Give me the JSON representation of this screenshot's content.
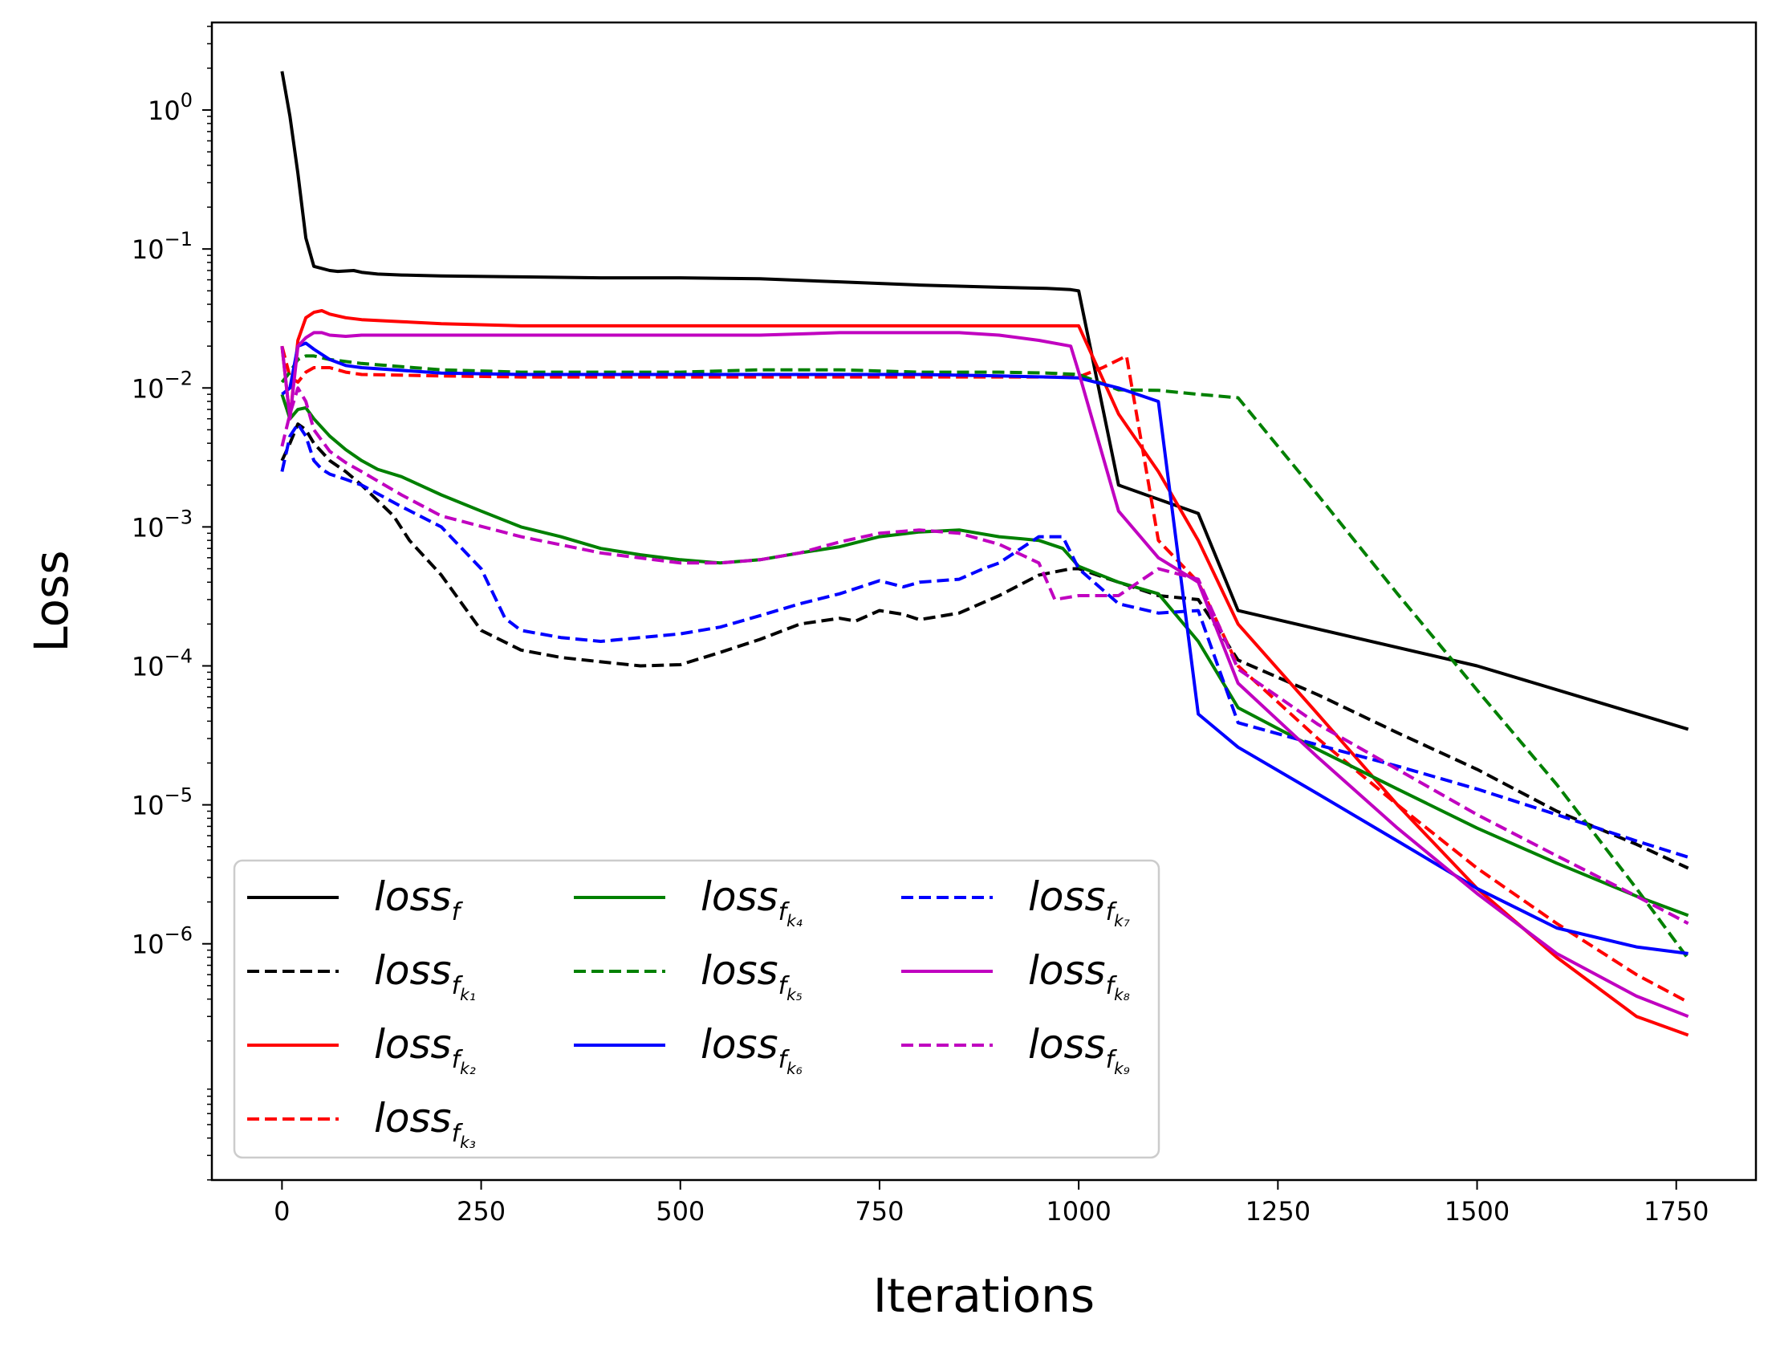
{
  "chart_data": {
    "type": "line",
    "title": "",
    "xlabel": "Iterations",
    "ylabel": "Loss",
    "yscale": "log",
    "xlim": [
      -88,
      1850
    ],
    "ylim_log10": [
      -7.7,
      0.63
    ],
    "xticks": [
      0,
      250,
      500,
      750,
      1000,
      1250,
      1500,
      1750
    ],
    "xtick_labels": [
      "0",
      "250",
      "500",
      "750",
      "1000",
      "1250",
      "1500",
      "1750"
    ],
    "ytick_exponents": [
      0,
      -1,
      -2,
      -3,
      -4,
      -5,
      -6
    ],
    "ytick_labels": [
      {
        "base": "10",
        "exp": "0"
      },
      {
        "base": "10",
        "exp": "−1"
      },
      {
        "base": "10",
        "exp": "−2"
      },
      {
        "base": "10",
        "exp": "−3"
      },
      {
        "base": "10",
        "exp": "−4"
      },
      {
        "base": "10",
        "exp": "−5"
      },
      {
        "base": "10",
        "exp": "−6"
      }
    ],
    "legend_position": "lower-left",
    "legend_columns": 3,
    "series": [
      {
        "name": "loss_f",
        "label_main": "loss",
        "label_sub": "f",
        "label_subsub": "",
        "color": "#000000",
        "dashed": false,
        "x": [
          0,
          10,
          20,
          30,
          40,
          60,
          70,
          90,
          100,
          120,
          150,
          200,
          300,
          400,
          500,
          600,
          700,
          800,
          900,
          960,
          990,
          1000,
          1050,
          1150,
          1200,
          1500,
          1765
        ],
        "y": [
          1.9,
          0.9,
          0.35,
          0.12,
          0.075,
          0.07,
          0.069,
          0.07,
          0.068,
          0.066,
          0.065,
          0.064,
          0.063,
          0.062,
          0.062,
          0.061,
          0.058,
          0.055,
          0.053,
          0.052,
          0.051,
          0.05,
          0.002,
          0.00125,
          0.00025,
          0.0001,
          3.5e-05
        ]
      },
      {
        "name": "loss_fk1",
        "label_main": "loss",
        "label_sub": "f",
        "label_subsub": "k₁",
        "color": "#000000",
        "dashed": true,
        "x": [
          0,
          10,
          20,
          30,
          40,
          60,
          80,
          100,
          140,
          160,
          200,
          250,
          300,
          350,
          400,
          450,
          500,
          550,
          600,
          650,
          700,
          720,
          750,
          780,
          800,
          850,
          900,
          950,
          990,
          1000,
          1050,
          1100,
          1150,
          1200,
          1300,
          1400,
          1500,
          1600,
          1700,
          1765
        ],
        "y": [
          0.003,
          0.004,
          0.0055,
          0.005,
          0.004,
          0.003,
          0.0025,
          0.002,
          0.0012,
          0.0008,
          0.00045,
          0.00018,
          0.00013,
          0.000115,
          0.000107,
          0.0001,
          0.000102,
          0.000125,
          0.000155,
          0.0002,
          0.00022,
          0.00021,
          0.00025,
          0.000235,
          0.000215,
          0.00024,
          0.00032,
          0.00045,
          0.0005,
          0.0005,
          0.0004,
          0.00032,
          0.0003,
          0.00011,
          6.2e-05,
          3.3e-05,
          1.8e-05,
          9e-06,
          5.2e-06,
          3.5e-06
        ]
      },
      {
        "name": "loss_fk2",
        "label_main": "loss",
        "label_sub": "f",
        "label_subsub": "k₂",
        "color": "#ff0000",
        "dashed": false,
        "x": [
          0,
          10,
          20,
          30,
          40,
          50,
          60,
          80,
          100,
          150,
          200,
          300,
          400,
          500,
          600,
          700,
          800,
          900,
          960,
          1000,
          1050,
          1100,
          1150,
          1200,
          1300,
          1400,
          1500,
          1600,
          1700,
          1765
        ],
        "y": [
          0.02,
          0.006,
          0.022,
          0.032,
          0.035,
          0.036,
          0.034,
          0.032,
          0.031,
          0.03,
          0.029,
          0.028,
          0.028,
          0.028,
          0.028,
          0.028,
          0.028,
          0.028,
          0.028,
          0.028,
          0.0065,
          0.0025,
          0.0008,
          0.0002,
          4.5e-05,
          1e-05,
          2.5e-06,
          8e-07,
          3e-07,
          2.2e-07
        ]
      },
      {
        "name": "loss_fk3",
        "label_main": "loss",
        "label_sub": "f",
        "label_subsub": "k₃",
        "color": "#ff0000",
        "dashed": true,
        "x": [
          0,
          10,
          20,
          30,
          40,
          60,
          80,
          100,
          200,
          300,
          400,
          500,
          600,
          700,
          800,
          900,
          960,
          990,
          1000,
          1030,
          1060,
          1100,
          1150,
          1200,
          1300,
          1400,
          1500,
          1600,
          1700,
          1765
        ],
        "y": [
          0.02,
          0.012,
          0.011,
          0.013,
          0.014,
          0.014,
          0.013,
          0.0125,
          0.0122,
          0.012,
          0.012,
          0.012,
          0.012,
          0.012,
          0.012,
          0.012,
          0.012,
          0.012,
          0.012,
          0.014,
          0.017,
          0.0008,
          0.0004,
          0.0001,
          3e-05,
          1e-05,
          3.5e-06,
          1.4e-06,
          6e-07,
          3.8e-07
        ]
      },
      {
        "name": "loss_fk4",
        "label_main": "loss",
        "label_sub": "f",
        "label_subsub": "k₄",
        "color": "#008000",
        "dashed": false,
        "x": [
          0,
          10,
          20,
          30,
          40,
          60,
          80,
          100,
          120,
          150,
          200,
          250,
          300,
          350,
          400,
          450,
          500,
          550,
          600,
          650,
          700,
          750,
          800,
          850,
          900,
          950,
          980,
          1000,
          1050,
          1100,
          1150,
          1200,
          1300,
          1400,
          1500,
          1600,
          1700,
          1765
        ],
        "y": [
          0.009,
          0.006,
          0.007,
          0.0072,
          0.006,
          0.0045,
          0.0036,
          0.003,
          0.0026,
          0.0023,
          0.0017,
          0.0013,
          0.001,
          0.00085,
          0.0007,
          0.00063,
          0.00058,
          0.00055,
          0.00058,
          0.00065,
          0.00072,
          0.00085,
          0.00092,
          0.00095,
          0.00085,
          0.0008,
          0.0007,
          0.00052,
          0.0004,
          0.00033,
          0.00015,
          5e-05,
          2.5e-05,
          1.3e-05,
          6.8e-06,
          3.8e-06,
          2.2e-06,
          1.6e-06
        ]
      },
      {
        "name": "loss_fk5",
        "label_main": "loss",
        "label_sub": "f",
        "label_subsub": "k₅",
        "color": "#008000",
        "dashed": true,
        "x": [
          0,
          10,
          20,
          30,
          40,
          60,
          80,
          100,
          200,
          300,
          400,
          500,
          600,
          700,
          800,
          900,
          960,
          1000,
          1050,
          1100,
          1150,
          1200,
          1300,
          1400,
          1500,
          1600,
          1700,
          1765
        ],
        "y": [
          0.011,
          0.013,
          0.016,
          0.017,
          0.017,
          0.016,
          0.0155,
          0.015,
          0.0135,
          0.013,
          0.013,
          0.013,
          0.0135,
          0.0135,
          0.013,
          0.013,
          0.0128,
          0.0125,
          0.0097,
          0.0096,
          0.009,
          0.0085,
          0.0017,
          0.00033,
          6.7e-05,
          1.4e-05,
          2.5e-06,
          7.8e-07
        ]
      },
      {
        "name": "loss_fk6",
        "label_main": "loss",
        "label_sub": "f",
        "label_subsub": "k₆",
        "color": "#0000ff",
        "dashed": false,
        "x": [
          0,
          10,
          20,
          30,
          40,
          60,
          80,
          100,
          200,
          300,
          400,
          500,
          600,
          700,
          800,
          900,
          960,
          1000,
          1050,
          1100,
          1150,
          1200,
          1300,
          1400,
          1500,
          1600,
          1700,
          1765
        ],
        "y": [
          0.009,
          0.01,
          0.02,
          0.021,
          0.019,
          0.016,
          0.0145,
          0.014,
          0.0128,
          0.0125,
          0.0125,
          0.0125,
          0.0125,
          0.0125,
          0.0125,
          0.0122,
          0.012,
          0.0118,
          0.01,
          0.008,
          4.5e-05,
          2.6e-05,
          1.2e-05,
          5.5e-06,
          2.5e-06,
          1.3e-06,
          9.5e-07,
          8.5e-07
        ]
      },
      {
        "name": "loss_fk7",
        "label_main": "loss",
        "label_sub": "f",
        "label_subsub": "k₇",
        "color": "#0000ff",
        "dashed": true,
        "x": [
          0,
          10,
          20,
          30,
          40,
          50,
          60,
          80,
          100,
          150,
          200,
          250,
          280,
          300,
          350,
          400,
          450,
          500,
          550,
          600,
          650,
          700,
          750,
          780,
          800,
          850,
          880,
          900,
          950,
          980,
          1000,
          1050,
          1100,
          1150,
          1200,
          1300,
          1400,
          1500,
          1600,
          1700,
          1765
        ],
        "y": [
          0.0025,
          0.0045,
          0.0055,
          0.0045,
          0.003,
          0.0026,
          0.0024,
          0.0022,
          0.002,
          0.0014,
          0.001,
          0.0005,
          0.00022,
          0.00018,
          0.00016,
          0.00015,
          0.00016,
          0.00017,
          0.00019,
          0.00023,
          0.00028,
          0.00033,
          0.00041,
          0.00037,
          0.0004,
          0.00042,
          0.0005,
          0.00055,
          0.00085,
          0.00085,
          0.0005,
          0.00028,
          0.00024,
          0.00025,
          3.9e-05,
          2.7e-05,
          1.9e-05,
          1.3e-05,
          8.5e-06,
          5.5e-06,
          4.2e-06
        ]
      },
      {
        "name": "loss_fk8",
        "label_main": "loss",
        "label_sub": "f",
        "label_subsub": "k₈",
        "color": "#c000c0",
        "dashed": false,
        "x": [
          0,
          10,
          20,
          30,
          40,
          50,
          60,
          80,
          100,
          200,
          300,
          400,
          500,
          600,
          700,
          800,
          850,
          900,
          950,
          990,
          1000,
          1050,
          1100,
          1150,
          1200,
          1300,
          1400,
          1500,
          1600,
          1700,
          1765
        ],
        "y": [
          0.02,
          0.006,
          0.02,
          0.023,
          0.025,
          0.025,
          0.024,
          0.0235,
          0.024,
          0.024,
          0.024,
          0.024,
          0.024,
          0.024,
          0.025,
          0.025,
          0.025,
          0.024,
          0.022,
          0.02,
          0.013,
          0.0013,
          0.0006,
          0.0004,
          7.5e-05,
          2.2e-05,
          6.8e-06,
          2.3e-06,
          8.5e-07,
          4.2e-07,
          3e-07
        ]
      },
      {
        "name": "loss_fk9",
        "label_main": "loss",
        "label_sub": "f",
        "label_subsub": "k₉",
        "color": "#c000c0",
        "dashed": true,
        "x": [
          0,
          10,
          20,
          30,
          40,
          60,
          80,
          100,
          150,
          200,
          300,
          400,
          500,
          550,
          600,
          650,
          700,
          750,
          800,
          850,
          900,
          950,
          970,
          1000,
          1050,
          1100,
          1150,
          1200,
          1300,
          1400,
          1500,
          1600,
          1700,
          1765
        ],
        "y": [
          0.0038,
          0.0065,
          0.01,
          0.008,
          0.005,
          0.0035,
          0.0029,
          0.0025,
          0.0017,
          0.0012,
          0.00085,
          0.00065,
          0.00055,
          0.00055,
          0.00058,
          0.00065,
          0.00078,
          0.0009,
          0.00095,
          0.0009,
          0.00075,
          0.00055,
          0.0003,
          0.00032,
          0.00032,
          0.0005,
          0.00042,
          9.5e-05,
          3.8e-05,
          1.8e-05,
          8.5e-06,
          4.3e-06,
          2.2e-06,
          1.4e-06
        ]
      }
    ]
  }
}
